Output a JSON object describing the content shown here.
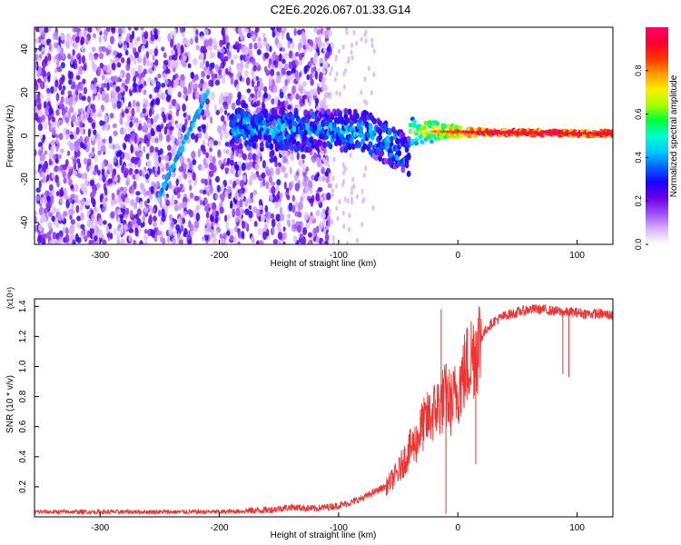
{
  "figure_title": "C2E6.2026.067.01.33.G14",
  "chart_data": [
    {
      "type": "heatmap",
      "title": "C2E6.2026.067.01.33.G14",
      "xlabel": "Height of straight line (km)",
      "ylabel": "Frequency (Hz)",
      "xlim": [
        -355,
        130
      ],
      "ylim": [
        -50,
        50
      ],
      "x_ticks": [
        -300,
        -200,
        -100,
        0,
        100
      ],
      "x_tick_labels": [
        "-300",
        "-200",
        "-100",
        "0",
        "100"
      ],
      "y_ticks": [
        -40,
        -20,
        0,
        20,
        40
      ],
      "y_tick_labels": [
        "-40",
        "-20",
        "0",
        "20",
        "40"
      ],
      "colorbar": {
        "label": "Normalized spectral amplitude",
        "range": [
          0,
          1
        ],
        "ticks": [
          0.0,
          0.2,
          0.4,
          0.6,
          0.8
        ],
        "tick_labels": [
          "0.0",
          "0.2",
          "0.4",
          "0.6",
          "0.8"
        ],
        "colormap": [
          "#ffffff",
          "#d9b3ff",
          "#9a4dff",
          "#6a00e0",
          "#1a00ff",
          "#0066ff",
          "#00ccff",
          "#00ffcc",
          "#00ff33",
          "#aaff00",
          "#ffee00",
          "#ff9900",
          "#ff3300",
          "#ff0033",
          "#ff0066"
        ]
      },
      "features": [
        {
          "name": "diagonal streak",
          "x": [
            -250,
            -210
          ],
          "y": [
            -27,
            20
          ],
          "amplitude": 0.35
        },
        {
          "name": "signal band",
          "x": [
            -190,
            130
          ],
          "y_center": [
            3,
            1
          ],
          "amplitude_max": 0.85
        }
      ],
      "noise_region": {
        "x": [
          -355,
          -115
        ],
        "y": [
          -50,
          50
        ],
        "amplitude": [
          0.05,
          0.3
        ]
      }
    },
    {
      "type": "line",
      "xlabel": "Height of straight line (km)",
      "ylabel": "SNR (10 * v/v)",
      "y_multiplier": "(x10⁴)",
      "xlim": [
        -355,
        130
      ],
      "ylim": [
        0,
        1.45
      ],
      "x_ticks": [
        -300,
        -200,
        -100,
        0,
        100
      ],
      "x_tick_labels": [
        "-300",
        "-200",
        "-100",
        "0",
        "100"
      ],
      "y_ticks": [
        0.2,
        0.4,
        0.6,
        0.8,
        1.0,
        1.2,
        1.4
      ],
      "y_tick_labels": [
        "0.2",
        "0.4",
        "0.6",
        "0.8",
        "1.0",
        "1.2",
        "1.4"
      ],
      "color": "#ee3333",
      "series": [
        {
          "name": "SNR",
          "x": [
            -355,
            -300,
            -250,
            -200,
            -180,
            -160,
            -140,
            -120,
            -100,
            -90,
            -80,
            -70,
            -60,
            -55,
            -50,
            -45,
            -40,
            -35,
            -30,
            -25,
            -20,
            -15,
            -10,
            -5,
            0,
            5,
            10,
            15,
            20,
            25,
            30,
            40,
            50,
            60,
            70,
            80,
            90,
            100,
            110,
            120,
            130
          ],
          "values": [
            0.03,
            0.03,
            0.03,
            0.03,
            0.035,
            0.04,
            0.06,
            0.05,
            0.07,
            0.09,
            0.12,
            0.16,
            0.2,
            0.25,
            0.3,
            0.38,
            0.45,
            0.5,
            0.6,
            0.65,
            0.7,
            0.75,
            0.8,
            0.75,
            0.85,
            0.95,
            1.05,
            1.12,
            1.2,
            1.26,
            1.3,
            1.34,
            1.36,
            1.38,
            1.38,
            1.37,
            1.36,
            1.36,
            1.35,
            1.35,
            1.34
          ]
        }
      ],
      "spikes": [
        {
          "x": -14,
          "value": 1.38
        },
        {
          "x": -10,
          "value": 0.02
        },
        {
          "x": 15,
          "value": 0.35
        },
        {
          "x": 88,
          "value": 0.95
        },
        {
          "x": 93,
          "value": 0.93
        }
      ]
    }
  ]
}
